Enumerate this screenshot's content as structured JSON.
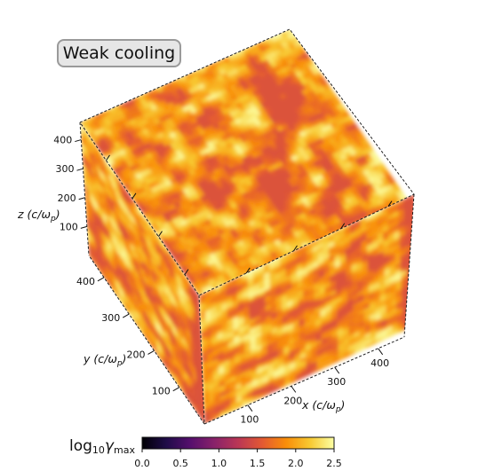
{
  "panel_label": "Weak cooling",
  "chart_data": {
    "type": "3d-cube-colormap",
    "axes": {
      "x": {
        "label_main": "x (c/ω",
        "label_sub": "p",
        "label_close": ")",
        "ticks": [
          100,
          200,
          300,
          400
        ],
        "range": [
          0,
          460
        ]
      },
      "y": {
        "label_main": "y (c/ω",
        "label_sub": "p",
        "label_close": ")",
        "ticks": [
          100,
          200,
          300,
          400
        ],
        "range": [
          0,
          460
        ]
      },
      "z": {
        "label_main": "z (c/ω",
        "label_sub": "p",
        "label_close": ")",
        "ticks": [
          100,
          200,
          300,
          400
        ],
        "range": [
          0,
          460
        ]
      }
    },
    "colorbar": {
      "label_prefix": "log",
      "label_base": "10",
      "label_var": "γ",
      "label_sub": "max",
      "colormap": "inferno",
      "range": [
        0.0,
        2.5
      ],
      "ticks": [
        "0.0",
        "0.5",
        "1.0",
        "1.5",
        "2.0",
        "2.5"
      ]
    },
    "colormap_stops": [
      "#000004",
      "#1f0c48",
      "#550f6d",
      "#88226a",
      "#ba3655",
      "#e35933",
      "#f98e09",
      "#f8c932",
      "#fcffa4"
    ],
    "face_value_range": [
      1.5,
      2.45
    ]
  }
}
